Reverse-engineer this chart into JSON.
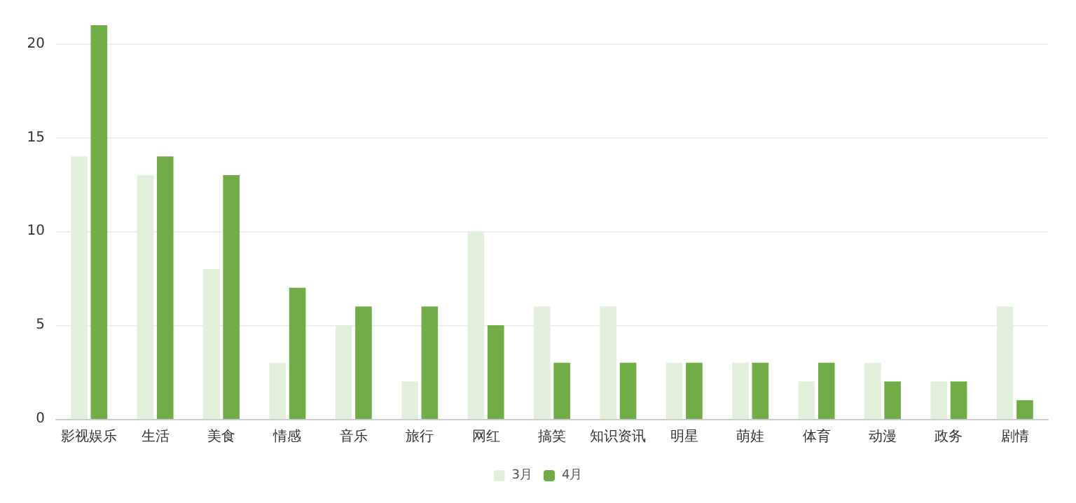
{
  "chart_data": {
    "type": "bar",
    "categories": [
      "影视娱乐",
      "生活",
      "美食",
      "情感",
      "音乐",
      "旅行",
      "网红",
      "搞笑",
      "知识资讯",
      "明星",
      "萌娃",
      "体育",
      "动漫",
      "政务",
      "剧情"
    ],
    "series": [
      {
        "name": "3月",
        "color": "#e2efda",
        "values": [
          14,
          13,
          8,
          3,
          5,
          2,
          10,
          6,
          6,
          3,
          3,
          2,
          3,
          2,
          6
        ]
      },
      {
        "name": "4月",
        "color": "#70ad47",
        "values": [
          21,
          14,
          13,
          7,
          6,
          6,
          5,
          3,
          3,
          3,
          3,
          3,
          2,
          2,
          1
        ]
      }
    ],
    "ylim": [
      0,
      21
    ],
    "yticks": [
      0,
      5,
      10,
      15,
      20
    ],
    "grid": "y",
    "legend": "bottom"
  }
}
